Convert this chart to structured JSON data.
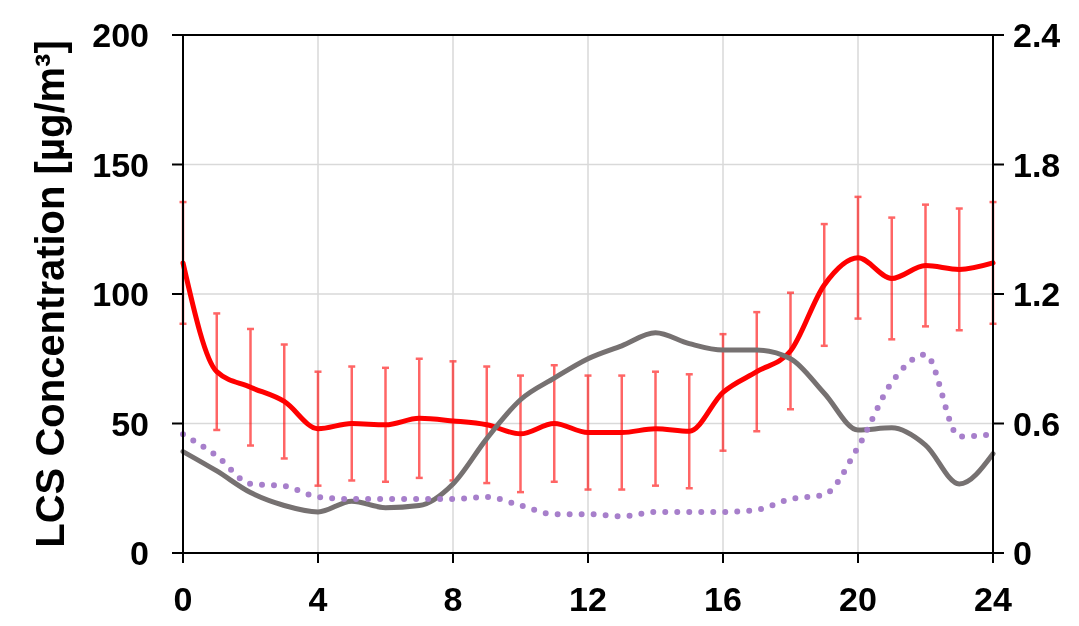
{
  "chart_data": {
    "type": "line",
    "ylabel": "LCS Concentration [µg/m³]",
    "x": [
      0,
      1,
      2,
      3,
      4,
      5,
      6,
      7,
      8,
      9,
      10,
      11,
      12,
      13,
      14,
      15,
      16,
      17,
      18,
      19,
      20,
      21,
      22,
      23,
      24
    ],
    "xlim": [
      0,
      24
    ],
    "xticks": [
      0,
      4,
      8,
      12,
      16,
      20,
      24
    ],
    "ylim": [
      0,
      200
    ],
    "yticks": [
      0,
      50,
      100,
      150,
      200
    ],
    "y2lim": [
      0,
      2.4
    ],
    "y2ticks": [
      0,
      0.6,
      1.2,
      1.8,
      2.4
    ],
    "grid": true,
    "line_style": "solid",
    "series": [
      {
        "color": "#ff0000",
        "values": [
          112,
          70,
          64,
          58.5,
          48,
          50,
          49.5,
          52,
          51,
          49.5,
          46,
          50,
          46.5,
          46.5,
          48,
          47,
          62,
          70,
          78,
          103.5,
          114,
          106,
          111,
          109.5,
          112
        ],
        "errors": [
          23.5,
          22.5,
          22.5,
          22,
          22,
          22,
          22,
          23,
          23,
          22.5,
          22.5,
          22.5,
          22,
          22,
          22,
          22,
          22.5,
          23,
          22.5,
          23.5,
          23.5,
          23.5,
          23.5,
          23.5,
          23.5
        ]
      },
      {
        "color": "#767171",
        "axis": "y2",
        "values": [
          0.47,
          0.38,
          0.28,
          0.22,
          0.19,
          0.24,
          0.21,
          0.22,
          0.32,
          0.53,
          0.71,
          0.81,
          0.9,
          0.96,
          1.02,
          0.97,
          0.94,
          0.94,
          0.9,
          0.74,
          0.57,
          0.58,
          0.5,
          0.32,
          0.46
        ]
      },
      {
        "color": "#a77fcb",
        "axis": "y2",
        "line_style": "dotted",
        "values": [
          0.55,
          0.45,
          0.32,
          0.31,
          0.26,
          0.25,
          0.25,
          0.25,
          0.25,
          0.26,
          0.22,
          0.18,
          0.18,
          0.17,
          0.19,
          0.19,
          0.19,
          0.2,
          0.25,
          0.27,
          0.49,
          0.79,
          0.92,
          0.54,
          0.55
        ]
      }
    ]
  }
}
